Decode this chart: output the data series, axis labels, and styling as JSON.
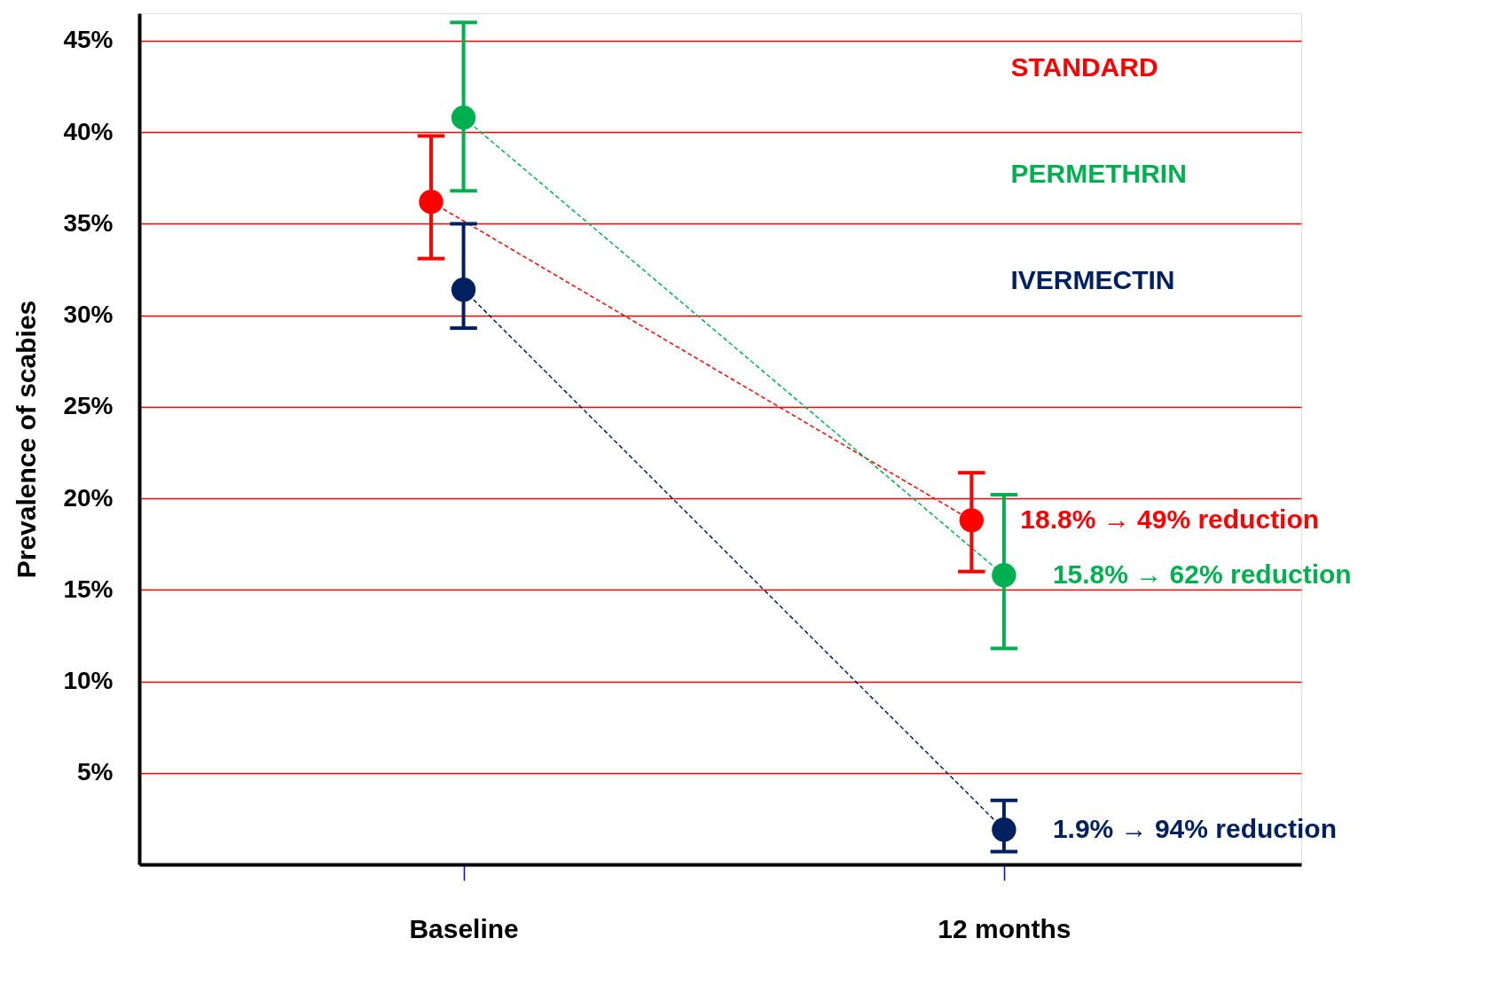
{
  "chart_data": {
    "type": "line",
    "ylabel": "Prevalence of scabies",
    "categories": [
      "Baseline",
      "12 months"
    ],
    "series": [
      {
        "name": "STANDARD",
        "color": "#ff0000",
        "values": [
          36.2,
          18.8
        ],
        "errors": [
          [
            33.1,
            39.8
          ],
          [
            16.0,
            21.4
          ]
        ],
        "value_labels": [
          null,
          "18.8%   →   49% reduction"
        ]
      },
      {
        "name": "PERMETHRIN",
        "color": "#00b050",
        "values": [
          40.8,
          15.8
        ],
        "errors": [
          [
            36.8,
            46.0
          ],
          [
            11.8,
            20.2
          ]
        ],
        "value_labels": [
          null,
          "15.8%   →   62% reduction"
        ]
      },
      {
        "name": "IVERMECTIN",
        "color": "#002060",
        "values": [
          31.4,
          1.9
        ],
        "errors": [
          [
            29.3,
            35.0
          ],
          [
            0.7,
            3.5
          ]
        ],
        "value_labels": [
          null,
          "1.9%     →   94% reduction"
        ]
      }
    ],
    "ylim": [
      0,
      46.5
    ],
    "yticks": [
      {
        "value": 5,
        "label": "5%"
      },
      {
        "value": 10,
        "label": "10%"
      },
      {
        "value": 15,
        "label": "15%"
      },
      {
        "value": 20,
        "label": "20%"
      },
      {
        "value": 25,
        "label": "25%"
      },
      {
        "value": 30,
        "label": "30%"
      },
      {
        "value": 35,
        "label": "35%"
      },
      {
        "value": 40,
        "label": "40%"
      },
      {
        "value": 45,
        "label": "45%"
      }
    ],
    "grid": "y",
    "legend": "top right",
    "marker": "circle",
    "line_style": "dashed"
  }
}
